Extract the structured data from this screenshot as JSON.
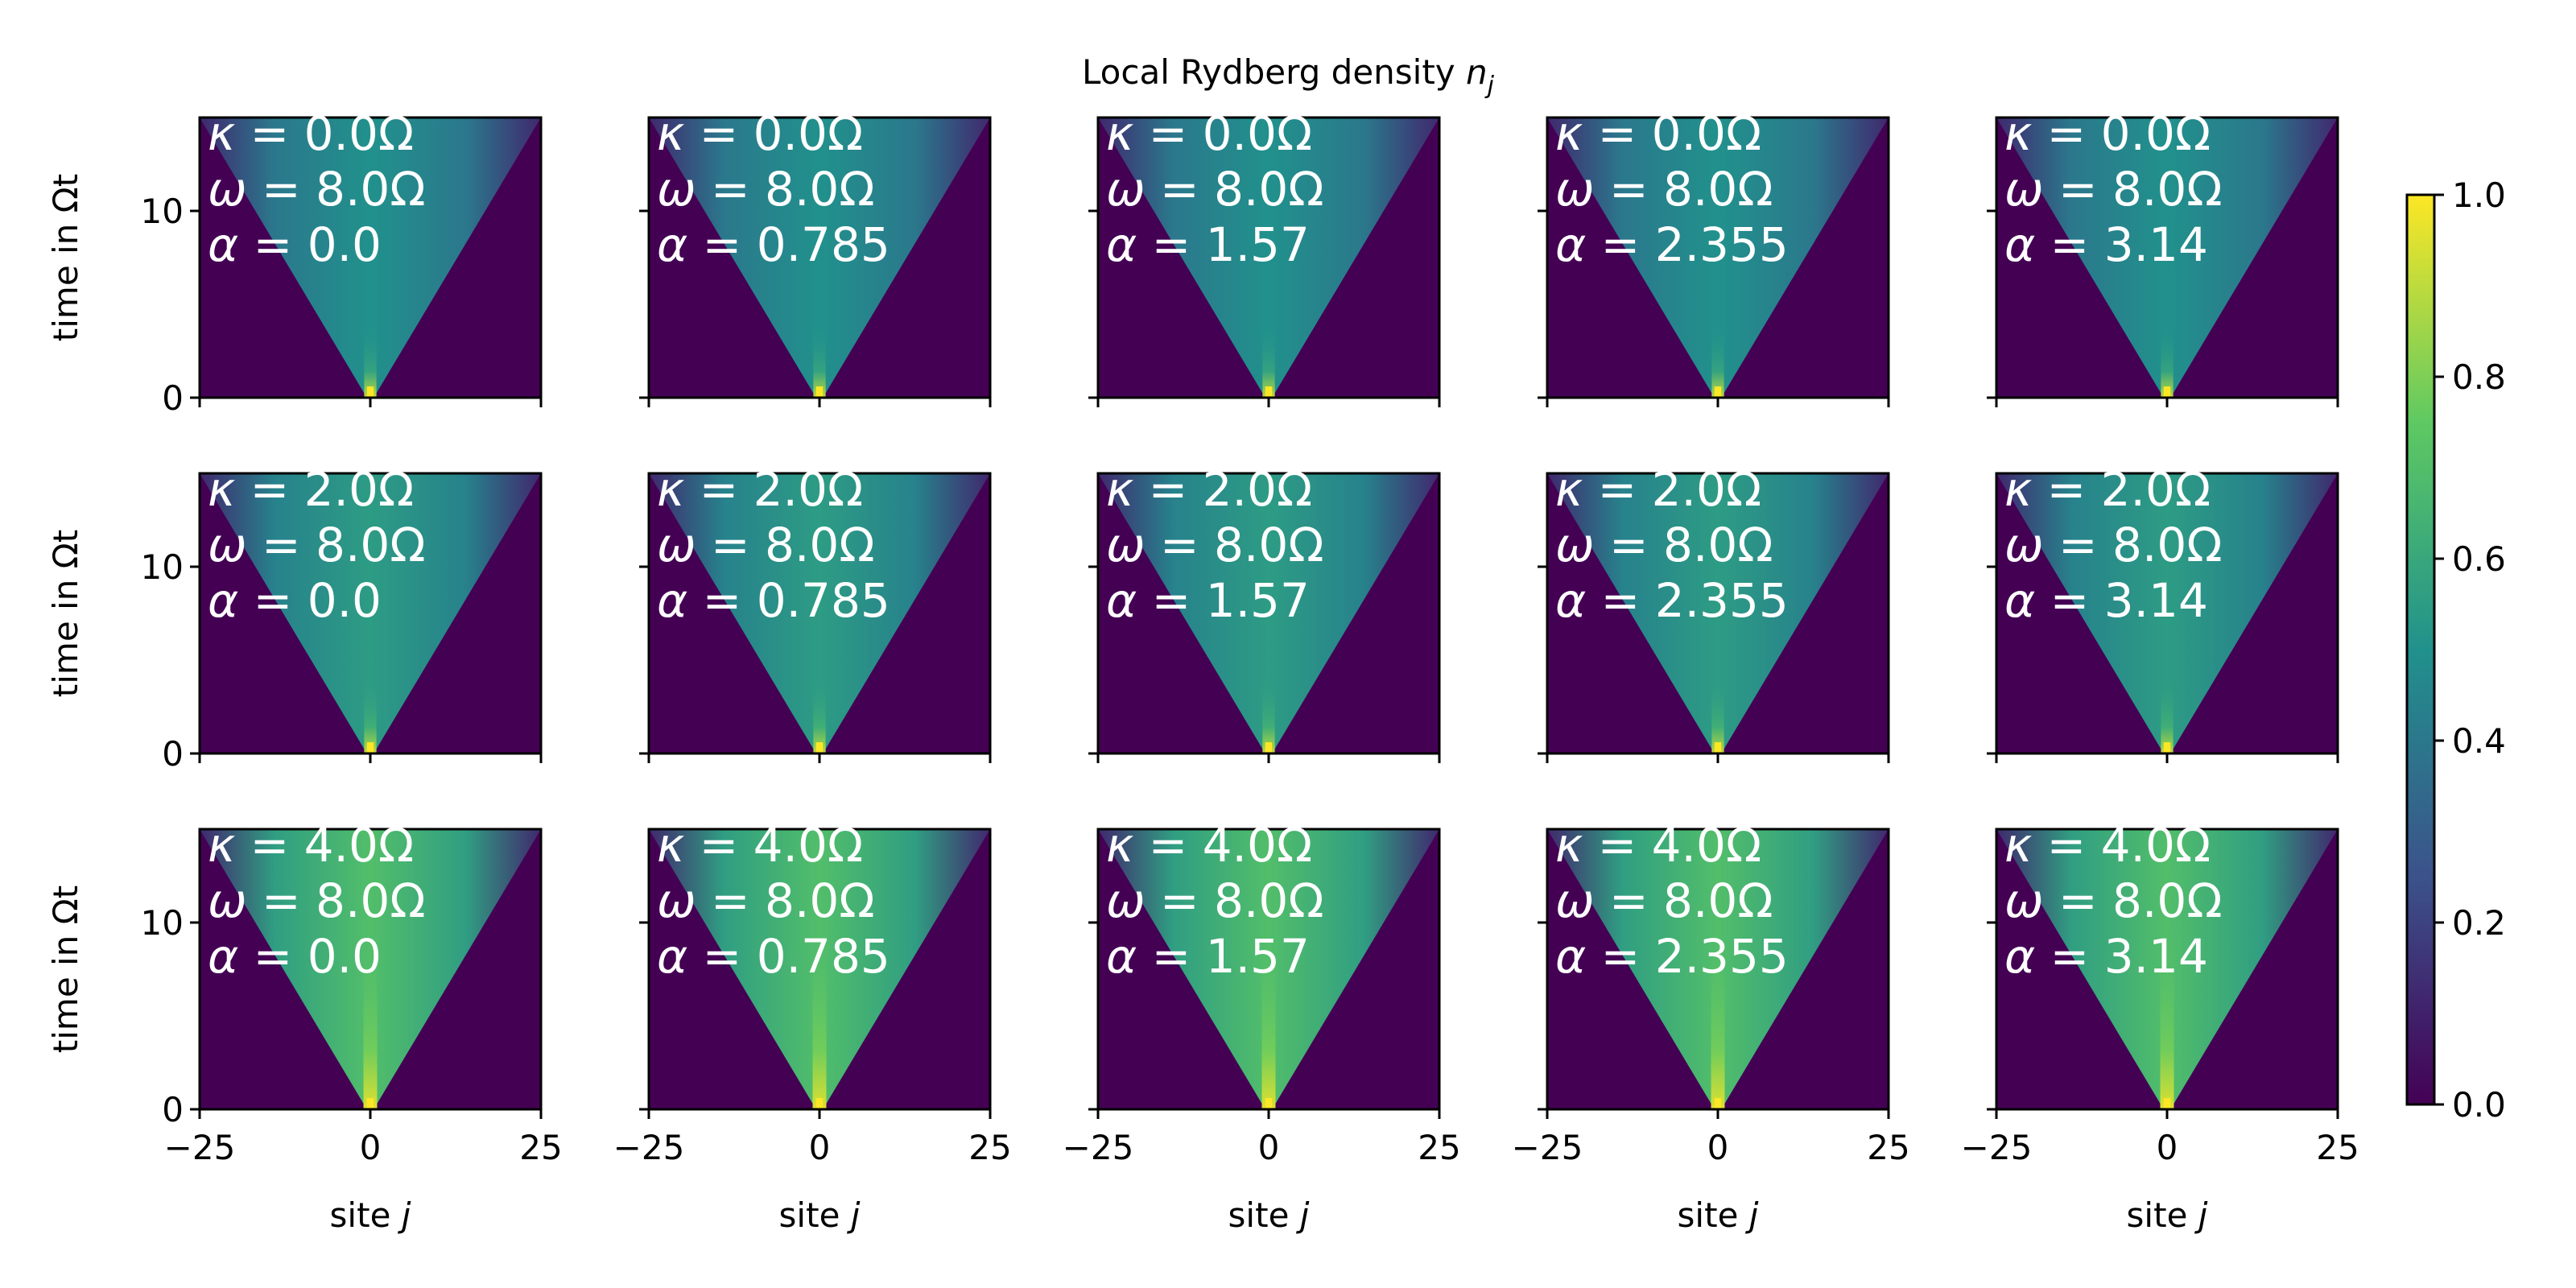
{
  "figure": {
    "title": "Local Rydberg density n_j",
    "title_main": "Local Rydberg density ",
    "title_symbol": "n",
    "title_sub": "j"
  },
  "axes_text": {
    "xlabel_main": "site ",
    "xlabel_symbol": "j",
    "ylabel": "time in Ωt"
  },
  "chart_data": {
    "type": "heatmap",
    "title": "Local Rydberg density n_j",
    "grid": {
      "rows": 3,
      "cols": 5
    },
    "xlabel": "site j",
    "ylabel": "time in Ωt",
    "xlim": [
      -25,
      25
    ],
    "ylim": [
      0,
      15
    ],
    "xticks": [
      -25,
      0,
      25
    ],
    "yticks": [
      0,
      10
    ],
    "grid_lines": false,
    "colormap": "viridis",
    "colorbar": {
      "min": 0.0,
      "max": 1.0,
      "ticks": [
        "0.0",
        "0.2",
        "0.4",
        "0.6",
        "0.8",
        "1.0"
      ],
      "placement": "right"
    },
    "row_params": [
      {
        "kappa": "0.0Ω",
        "omega": "8.0Ω",
        "peak_density": 0.9,
        "wedge_density": 0.5
      },
      {
        "kappa": "2.0Ω",
        "omega": "8.0Ω",
        "peak_density": 0.9,
        "wedge_density": 0.55
      },
      {
        "kappa": "4.0Ω",
        "omega": "8.0Ω",
        "peak_density": 0.95,
        "wedge_density": 0.7
      }
    ],
    "col_params": [
      {
        "alpha": "0.0"
      },
      {
        "alpha": "0.785"
      },
      {
        "alpha": "1.57"
      },
      {
        "alpha": "2.355"
      },
      {
        "alpha": "3.14"
      }
    ],
    "light_cone": {
      "origin_site": 0,
      "edge_sites_at_top": [
        -25,
        25
      ],
      "t_top": 15
    }
  },
  "colors": {
    "background": "#440154",
    "annotation": "#ffffff",
    "axis": "#000000"
  }
}
